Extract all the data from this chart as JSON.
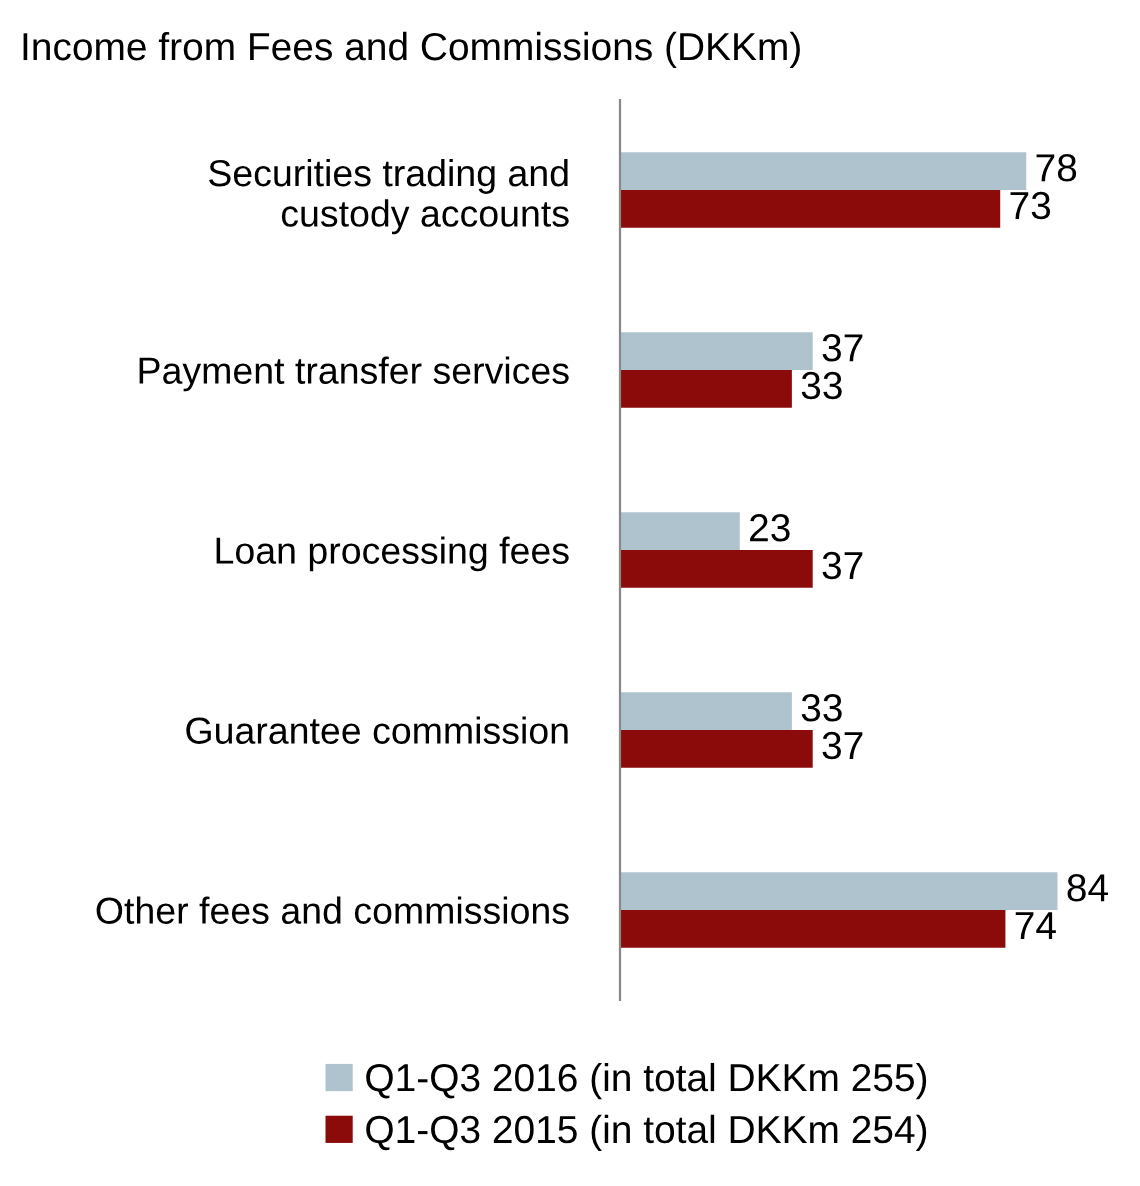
{
  "chart_data": {
    "type": "bar",
    "orientation": "horizontal",
    "title": "Income from Fees and Commissions (DKKm)",
    "categories": [
      "Securities trading and\ncustody accounts",
      "Payment transfer services",
      "Loan processing fees",
      "Guarantee commission",
      "Other fees and commissions"
    ],
    "series": [
      {
        "name": "Q1-Q3 2016 (in total DKKm 255)",
        "color": "#afc3cf",
        "values": [
          78,
          37,
          23,
          33,
          84
        ]
      },
      {
        "name": "Q1-Q3 2015 (in total DKKm 254)",
        "color": "#8b0a0a",
        "values": [
          73,
          33,
          37,
          37,
          74
        ]
      }
    ],
    "data_labels": true,
    "tick_labels": "y",
    "grid": false,
    "legend": "bottom"
  }
}
